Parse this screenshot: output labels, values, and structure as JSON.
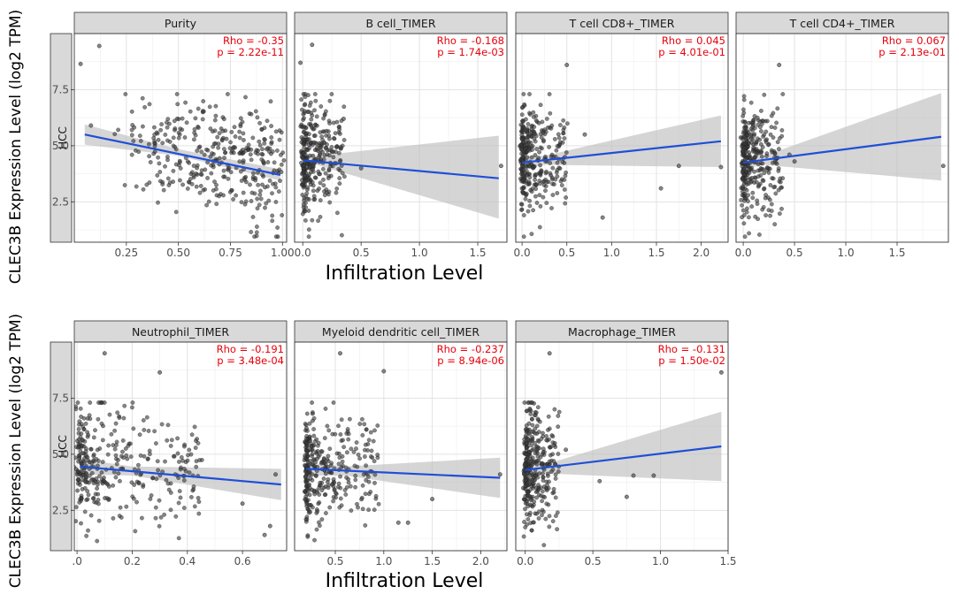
{
  "figure": {
    "y_label": "CLEC3B Expression Level (log2 TPM)",
    "x_label": "Infiltration Level",
    "row_strip": "HCC"
  },
  "chart_data": [
    {
      "type": "scatter",
      "title": "Purity",
      "xlabel": "Infiltration Level",
      "ylabel": "CLEC3B Expression Level (log2 TPM)",
      "xlim": [
        0.0,
        1.02
      ],
      "ylim": [
        0.7,
        10.0
      ],
      "xticks": [
        0.25,
        0.5,
        0.75,
        1.0
      ],
      "xtick_labels": [
        "0.25",
        "0.50",
        "0.75",
        "1.00"
      ],
      "yticks": [
        2.5,
        5.0,
        7.5
      ],
      "ytick_labels": [
        "2.5",
        "5.0",
        "7.5"
      ],
      "fit": {
        "x0": 0.05,
        "y0": 5.5,
        "x1": 0.99,
        "y1": 3.7
      },
      "band": {
        "x": [
          0.05,
          0.5,
          0.99
        ],
        "lo": [
          5.05,
          4.55,
          3.45
        ],
        "hi": [
          5.95,
          4.85,
          3.95
        ]
      },
      "points": {
        "xrange": [
          0.05,
          0.99
        ],
        "ymean": 4.6,
        "ysd": 1.3,
        "n": 360,
        "skew": 0.5
      },
      "outliers": [
        [
          0.12,
          9.45
        ],
        [
          0.03,
          8.65
        ],
        [
          0.08,
          5.9
        ]
      ],
      "annotation": {
        "rho": "Rho = -0.35",
        "p": "p = 2.22e-11"
      },
      "grid": true
    },
    {
      "type": "scatter",
      "title": "B cell_TIMER",
      "xlabel": "Infiltration Level",
      "ylabel": "CLEC3B Expression Level (log2 TPM)",
      "xlim": [
        -0.07,
        1.75
      ],
      "ylim": [
        0.7,
        10.0
      ],
      "xticks": [
        0.0,
        0.5,
        1.0,
        1.5
      ],
      "xtick_labels": [
        "0.0",
        "0.5",
        "1.0",
        "1.5"
      ],
      "yticks": [
        2.5,
        5.0,
        7.5
      ],
      "ytick_labels": [
        "2.5",
        "5.0",
        "7.5"
      ],
      "fit": {
        "x0": 0.0,
        "y0": 4.35,
        "x1": 1.68,
        "y1": 3.55
      },
      "band": {
        "x": [
          0.0,
          0.12,
          1.68
        ],
        "lo": [
          4.05,
          4.15,
          1.75
        ],
        "hi": [
          4.65,
          4.55,
          5.45
        ]
      },
      "points": {
        "xrange": [
          0.0,
          0.35
        ],
        "ymean": 4.4,
        "ysd": 1.25,
        "n": 330,
        "skew": 0.1
      },
      "outliers": [
        [
          0.08,
          9.5
        ],
        [
          -0.02,
          8.7
        ],
        [
          1.7,
          4.1
        ],
        [
          0.5,
          4.0
        ],
        [
          0.35,
          6.2
        ]
      ],
      "annotation": {
        "rho": "Rho = -0.168",
        "p": "p = 1.74e-03"
      },
      "grid": true
    },
    {
      "type": "scatter",
      "title": "T cell CD8+_TIMER",
      "xlabel": "Infiltration Level",
      "ylabel": "CLEC3B Expression Level (log2 TPM)",
      "xlim": [
        -0.07,
        2.3
      ],
      "ylim": [
        0.7,
        10.0
      ],
      "xticks": [
        0.0,
        0.5,
        1.0,
        1.5,
        2.0
      ],
      "xtick_labels": [
        "0.0",
        "0.5",
        "1.0",
        "1.5",
        "2.0"
      ],
      "yticks": [
        2.5,
        5.0,
        7.5
      ],
      "ytick_labels": [
        "2.5",
        "5.0",
        "7.5"
      ],
      "fit": {
        "x0": 0.0,
        "y0": 4.25,
        "x1": 2.22,
        "y1": 5.2
      },
      "band": {
        "x": [
          0.0,
          0.25,
          2.22
        ],
        "lo": [
          3.95,
          4.15,
          4.05
        ],
        "hi": [
          4.55,
          4.55,
          6.35
        ]
      },
      "points": {
        "xrange": [
          0.0,
          0.5
        ],
        "ymean": 4.45,
        "ysd": 1.25,
        "n": 330,
        "skew": 0.2
      },
      "outliers": [
        [
          0.5,
          8.6
        ],
        [
          2.22,
          4.05
        ],
        [
          1.75,
          4.1
        ],
        [
          1.55,
          3.1
        ],
        [
          0.9,
          1.8
        ],
        [
          0.7,
          5.5
        ]
      ],
      "annotation": {
        "rho": "Rho = 0.045",
        "p": "p = 4.01e-01"
      },
      "grid": true
    },
    {
      "type": "scatter",
      "title": "T cell CD4+_TIMER",
      "xlabel": "Infiltration Level",
      "ylabel": "CLEC3B Expression Level (log2 TPM)",
      "xlim": [
        -0.07,
        2.0
      ],
      "ylim": [
        0.7,
        10.0
      ],
      "xticks": [
        0.0,
        0.5,
        1.0,
        1.5
      ],
      "xtick_labels": [
        "0.0",
        "0.5",
        "1.0",
        "1.5"
      ],
      "yticks": [
        2.5,
        5.0,
        7.5
      ],
      "ytick_labels": [
        "2.5",
        "5.0",
        "7.5"
      ],
      "fit": {
        "x0": 0.0,
        "y0": 4.25,
        "x1": 1.93,
        "y1": 5.4
      },
      "band": {
        "x": [
          0.0,
          0.2,
          1.93
        ],
        "lo": [
          3.95,
          4.15,
          3.45
        ],
        "hi": [
          4.55,
          4.55,
          7.35
        ]
      },
      "points": {
        "xrange": [
          0.0,
          0.38
        ],
        "ymean": 4.45,
        "ysd": 1.25,
        "n": 330,
        "skew": 0.2
      },
      "outliers": [
        [
          0.35,
          8.6
        ],
        [
          1.95,
          4.1
        ],
        [
          0.5,
          4.3
        ],
        [
          0.45,
          4.6
        ]
      ],
      "annotation": {
        "rho": "Rho = 0.067",
        "p": "p = 2.13e-01"
      },
      "grid": true
    },
    {
      "type": "scatter",
      "title": "Neutrophil_TIMER",
      "xlabel": "Infiltration Level",
      "ylabel": "CLEC3B Expression Level (log2 TPM)",
      "xlim": [
        -0.01,
        0.76
      ],
      "ylim": [
        0.7,
        10.0
      ],
      "xticks": [
        0.0,
        0.2,
        0.4,
        0.6
      ],
      "xtick_labels": [
        ".0",
        "0.2",
        "0.4",
        "0.6"
      ],
      "yticks": [
        2.5,
        5.0,
        7.5
      ],
      "ytick_labels": [
        "2.5",
        "5.0",
        "7.5"
      ],
      "fit": {
        "x0": 0.01,
        "y0": 4.45,
        "x1": 0.74,
        "y1": 3.65
      },
      "band": {
        "x": [
          0.01,
          0.2,
          0.74
        ],
        "lo": [
          4.1,
          4.05,
          2.95
        ],
        "hi": [
          4.8,
          4.45,
          4.35
        ]
      },
      "points": {
        "xrange": [
          0.01,
          0.45
        ],
        "ymean": 4.4,
        "ysd": 1.3,
        "n": 340,
        "skew": 0.1
      },
      "outliers": [
        [
          0.1,
          9.5
        ],
        [
          0.3,
          8.65
        ],
        [
          0.72,
          4.1
        ],
        [
          0.7,
          1.8
        ],
        [
          0.68,
          1.4
        ],
        [
          0.6,
          2.8
        ]
      ],
      "annotation": {
        "rho": "Rho = -0.191",
        "p": "p = 3.48e-04"
      },
      "grid": true
    },
    {
      "type": "scatter",
      "title": "Myeloid dendritic cell_TIMER",
      "xlabel": "Infiltration Level",
      "ylabel": "CLEC3B Expression Level (log2 TPM)",
      "xlim": [
        0.08,
        2.27
      ],
      "ylim": [
        0.7,
        10.0
      ],
      "xticks": [
        0.5,
        1.0,
        1.5,
        2.0
      ],
      "xtick_labels": [
        "0.5",
        "1.0",
        "1.5",
        "2.0"
      ],
      "yticks": [
        2.5,
        5.0,
        7.5
      ],
      "ytick_labels": [
        "2.5",
        "5.0",
        "7.5"
      ],
      "fit": {
        "x0": 0.2,
        "y0": 4.35,
        "x1": 2.2,
        "y1": 3.95
      },
      "band": {
        "x": [
          0.2,
          0.6,
          2.2
        ],
        "lo": [
          4.05,
          4.05,
          3.05
        ],
        "hi": [
          4.65,
          4.45,
          4.85
        ]
      },
      "points": {
        "xrange": [
          0.2,
          0.95
        ],
        "ymean": 4.4,
        "ysd": 1.2,
        "n": 340,
        "skew": 0.1
      },
      "outliers": [
        [
          0.55,
          9.5
        ],
        [
          1.0,
          8.7
        ],
        [
          2.2,
          4.1
        ],
        [
          1.25,
          1.95
        ],
        [
          1.15,
          1.95
        ],
        [
          1.5,
          3.0
        ]
      ],
      "annotation": {
        "rho": "Rho = -0.237",
        "p": "p = 8.94e-06"
      },
      "grid": true
    },
    {
      "type": "scatter",
      "title": "Macrophage_TIMER",
      "xlabel": "Infiltration Level",
      "ylabel": "CLEC3B Expression Level (log2 TPM)",
      "xlim": [
        -0.07,
        1.5
      ],
      "ylim": [
        0.7,
        10.0
      ],
      "xticks": [
        0.0,
        0.5,
        1.0,
        1.5
      ],
      "xtick_labels": [
        "0.0",
        "0.5",
        "1.0",
        "1.5"
      ],
      "yticks": [
        2.5,
        5.0,
        7.5
      ],
      "ytick_labels": [
        "2.5",
        "5.0",
        "7.5"
      ],
      "fit": {
        "x0": 0.0,
        "y0": 4.3,
        "x1": 1.45,
        "y1": 5.35
      },
      "band": {
        "x": [
          0.0,
          0.15,
          1.45
        ],
        "lo": [
          4.0,
          4.15,
          3.8
        ],
        "hi": [
          4.6,
          4.55,
          6.9
        ]
      },
      "points": {
        "xrange": [
          0.0,
          0.25
        ],
        "ymean": 4.45,
        "ysd": 1.25,
        "n": 330,
        "skew": 0.1
      },
      "outliers": [
        [
          1.45,
          8.65
        ],
        [
          0.18,
          9.5
        ],
        [
          0.8,
          4.05
        ],
        [
          0.95,
          4.05
        ],
        [
          0.75,
          3.1
        ],
        [
          0.55,
          3.8
        ],
        [
          0.3,
          5.2
        ]
      ],
      "annotation": {
        "rho": "Rho = -0.131",
        "p": "p = 1.50e-02"
      },
      "grid": true
    }
  ]
}
